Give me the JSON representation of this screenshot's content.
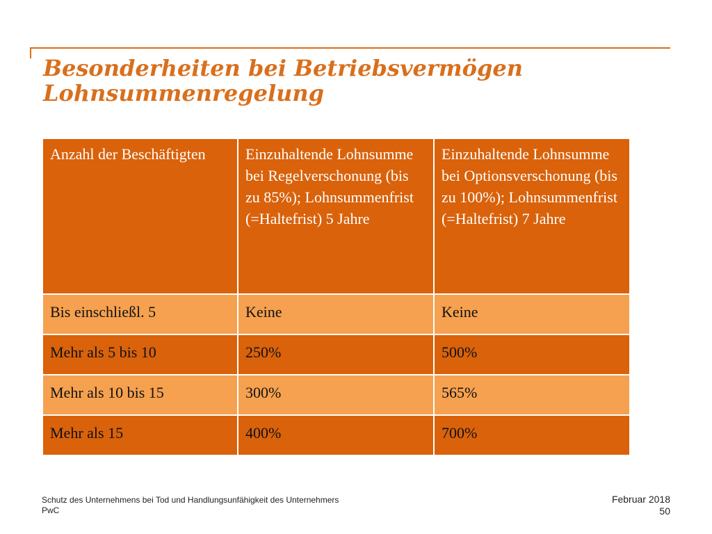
{
  "title": {
    "line1": "Besonderheiten bei Betriebsvermögen",
    "line2": "Lohnsummenregelung"
  },
  "table": {
    "headers": [
      "Anzahl der Beschäftigten",
      "Einzuhaltende Lohnsumme bei Regelverschonung (bis zu 85%); Lohnsummenfrist (=Haltefrist) 5 Jahre",
      "Einzuhaltende Lohnsumme bei Optionsverschonung (bis zu 100%); Lohnsummenfrist (=Haltefrist) 7 Jahre"
    ],
    "rows": [
      [
        "Bis einschließl. 5",
        "Keine",
        "Keine"
      ],
      [
        "Mehr als 5 bis 10",
        "250%",
        "500%"
      ],
      [
        "Mehr als 10 bis 15",
        "300%",
        "565%"
      ],
      [
        "Mehr als 15",
        "400%",
        "700%"
      ]
    ]
  },
  "footer": {
    "subject": "Schutz des Unternehmens bei Tod und Handlungsunfähigkeit des Unternehmers",
    "brand": "PwC",
    "date": "Februar 2018",
    "page": "50"
  },
  "colors": {
    "accent": "#d96f1c",
    "dark_row": "#d9620b",
    "light_row": "#f6a14f"
  }
}
